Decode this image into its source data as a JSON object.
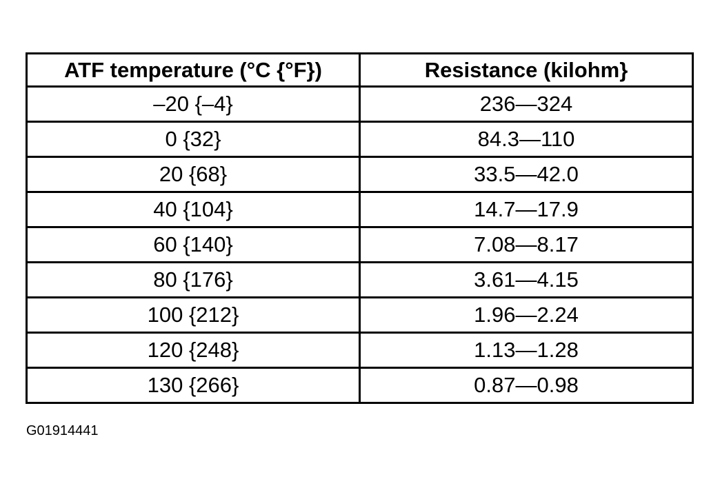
{
  "table": {
    "header": [
      "ATF temperature (°C {°F})",
      "Resistance (kilohm}"
    ],
    "rows": [
      [
        "–20 {–4}",
        "236—324"
      ],
      [
        "0 {32}",
        "84.3—110"
      ],
      [
        "20 {68}",
        "33.5—42.0"
      ],
      [
        "40 {104}",
        "14.7—17.9"
      ],
      [
        "60 {140}",
        "7.08—8.17"
      ],
      [
        "80 {176}",
        "3.61—4.15"
      ],
      [
        "100 {212}",
        "1.96—2.24"
      ],
      [
        "120 {248}",
        "1.13—1.28"
      ],
      [
        "130 {266}",
        "0.87—0.98"
      ]
    ]
  },
  "figure_id": "G01914441"
}
